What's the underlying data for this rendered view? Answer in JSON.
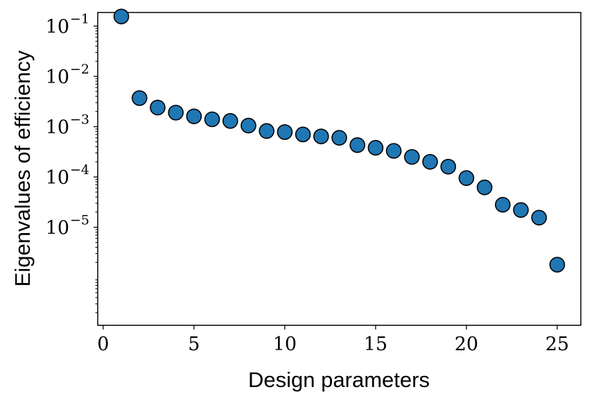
{
  "chart_data": {
    "type": "scatter",
    "xlabel": "Design parameters",
    "ylabel": "Eigenvalues of efficiency",
    "xlim": [
      -0.3,
      26.3
    ],
    "ylim_log10": [
      -6.95,
      -0.73
    ],
    "y_scale": "log",
    "grid": false,
    "x_ticks": [
      0,
      5,
      10,
      15,
      20,
      25
    ],
    "y_ticks": [
      {
        "base": "10",
        "exp": "−5",
        "value": 1e-05
      },
      {
        "base": "10",
        "exp": "−4",
        "value": 0.0001
      },
      {
        "base": "10",
        "exp": "−3",
        "value": 0.001
      },
      {
        "base": "10",
        "exp": "−2",
        "value": 0.01
      },
      {
        "base": "10",
        "exp": "−1",
        "value": 0.1
      }
    ],
    "marker_color": "#1f77b4",
    "marker_edge": "#000000",
    "series": [
      {
        "x": [
          1,
          2,
          3,
          4,
          5,
          6,
          7,
          8,
          9,
          10,
          11,
          12,
          13,
          14,
          15,
          16,
          17,
          18,
          19,
          20,
          21,
          22,
          23,
          24,
          25
        ],
        "y": [
          0.155,
          0.0037,
          0.0024,
          0.0019,
          0.0016,
          0.0014,
          0.0013,
          0.00105,
          0.00082,
          0.00078,
          0.0007,
          0.00064,
          0.0006,
          0.00043,
          0.00038,
          0.00033,
          0.00025,
          0.0002,
          0.00016,
          9.5e-05,
          6.2e-05,
          2.8e-05,
          2.2e-05,
          1.55e-05,
          1.8e-06
        ]
      }
    ]
  }
}
